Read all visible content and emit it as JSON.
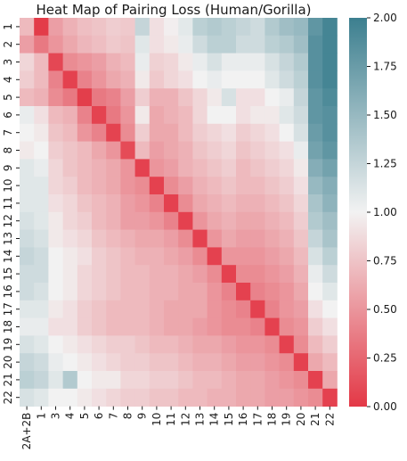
{
  "chart_data": {
    "type": "heatmap",
    "title": "Heat Map of Pairing Loss (Human/Gorilla)",
    "xlabel": "",
    "ylabel": "",
    "row_labels": [
      "1",
      "2",
      "3",
      "4",
      "5",
      "6",
      "7",
      "8",
      "9",
      "10",
      "11",
      "12",
      "13",
      "14",
      "15",
      "16",
      "17",
      "18",
      "19",
      "20",
      "21",
      "22"
    ],
    "col_labels": [
      "2A+2B",
      "1",
      "3",
      "4",
      "5",
      "6",
      "7",
      "8",
      "9",
      "10",
      "11",
      "12",
      "13",
      "14",
      "15",
      "16",
      "17",
      "18",
      "19",
      "20",
      "21",
      "22"
    ],
    "colorbar": {
      "min": 0.0,
      "max": 2.0,
      "ticks": [
        "0.00",
        "0.25",
        "0.50",
        "0.75",
        "1.00",
        "1.25",
        "1.50",
        "1.75",
        "2.00"
      ],
      "colors": {
        "low": "#e33846",
        "mid": "#f2f2f2",
        "high": "#3c7f8f"
      }
    },
    "values": [
      [
        0.7,
        0.02,
        0.55,
        0.65,
        0.72,
        0.75,
        0.8,
        0.78,
        1.25,
        0.9,
        0.98,
        1.08,
        1.3,
        1.35,
        1.3,
        1.25,
        1.2,
        1.35,
        1.45,
        1.5,
        1.8,
        1.95
      ],
      [
        0.55,
        0.35,
        0.5,
        0.6,
        0.68,
        0.72,
        0.78,
        0.75,
        1.1,
        0.9,
        0.95,
        1.05,
        1.2,
        1.3,
        1.3,
        1.2,
        1.2,
        1.3,
        1.35,
        1.45,
        1.85,
        1.95
      ],
      [
        0.85,
        0.7,
        0.08,
        0.45,
        0.5,
        0.55,
        0.65,
        0.7,
        1.05,
        0.82,
        0.85,
        0.95,
        1.05,
        1.15,
        1.05,
        1.05,
        1.05,
        1.15,
        1.25,
        1.35,
        1.85,
        1.95
      ],
      [
        0.8,
        0.7,
        0.4,
        0.05,
        0.4,
        0.5,
        0.6,
        0.65,
        0.95,
        0.78,
        0.85,
        0.9,
        1.0,
        1.05,
        1.0,
        1.0,
        1.0,
        1.1,
        1.2,
        1.3,
        1.85,
        1.95
      ],
      [
        0.7,
        0.65,
        0.45,
        0.35,
        0.03,
        0.35,
        0.4,
        0.55,
        0.8,
        0.65,
        0.65,
        0.75,
        0.85,
        0.95,
        1.15,
        0.9,
        0.9,
        1.0,
        1.05,
        1.25,
        1.8,
        1.9
      ],
      [
        1.05,
        0.9,
        0.7,
        0.65,
        0.4,
        0.06,
        0.35,
        0.5,
        0.95,
        0.6,
        0.65,
        0.7,
        0.85,
        1.0,
        1.0,
        0.9,
        0.95,
        0.95,
        1.1,
        1.2,
        1.8,
        1.85
      ],
      [
        1.0,
        0.95,
        0.75,
        0.7,
        0.5,
        0.4,
        0.06,
        0.45,
        0.8,
        0.6,
        0.6,
        0.7,
        0.8,
        0.85,
        0.9,
        0.8,
        0.85,
        0.9,
        1.0,
        1.15,
        1.75,
        1.85
      ],
      [
        0.95,
        1.0,
        0.8,
        0.75,
        0.7,
        0.6,
        0.5,
        0.1,
        0.7,
        0.55,
        0.6,
        0.65,
        0.75,
        0.8,
        0.85,
        0.75,
        0.8,
        0.85,
        0.9,
        1.05,
        1.7,
        1.8
      ],
      [
        1.1,
        1.05,
        0.85,
        0.75,
        0.7,
        0.65,
        0.6,
        0.5,
        0.05,
        0.5,
        0.55,
        0.65,
        0.7,
        0.75,
        0.8,
        0.7,
        0.75,
        0.8,
        0.85,
        0.95,
        1.6,
        1.7
      ],
      [
        1.1,
        1.1,
        0.85,
        0.8,
        0.7,
        0.65,
        0.6,
        0.5,
        0.45,
        0.05,
        0.45,
        0.55,
        0.65,
        0.7,
        0.75,
        0.7,
        0.7,
        0.75,
        0.8,
        0.9,
        1.5,
        1.6
      ],
      [
        1.1,
        1.1,
        0.9,
        0.85,
        0.75,
        0.7,
        0.65,
        0.55,
        0.5,
        0.4,
        0.05,
        0.45,
        0.6,
        0.65,
        0.7,
        0.65,
        0.65,
        0.7,
        0.75,
        0.85,
        1.4,
        1.55
      ],
      [
        1.15,
        1.1,
        0.95,
        0.85,
        0.8,
        0.7,
        0.65,
        0.55,
        0.55,
        0.5,
        0.4,
        0.05,
        0.5,
        0.6,
        0.65,
        0.6,
        0.6,
        0.65,
        0.7,
        0.8,
        1.35,
        1.45
      ],
      [
        1.2,
        1.15,
        0.95,
        0.9,
        0.85,
        0.75,
        0.7,
        0.65,
        0.6,
        0.6,
        0.55,
        0.45,
        0.05,
        0.5,
        0.6,
        0.55,
        0.55,
        0.6,
        0.65,
        0.75,
        1.25,
        1.4
      ],
      [
        1.25,
        1.2,
        1.0,
        0.95,
        0.9,
        0.8,
        0.75,
        0.7,
        0.65,
        0.65,
        0.6,
        0.55,
        0.45,
        0.05,
        0.5,
        0.5,
        0.5,
        0.55,
        0.6,
        0.7,
        1.15,
        1.3
      ],
      [
        1.2,
        1.2,
        1.0,
        0.95,
        0.85,
        0.8,
        0.75,
        0.7,
        0.7,
        0.65,
        0.65,
        0.6,
        0.55,
        0.45,
        0.05,
        0.45,
        0.45,
        0.5,
        0.55,
        0.65,
        1.05,
        1.2
      ],
      [
        1.2,
        1.15,
        1.0,
        0.95,
        0.85,
        0.8,
        0.75,
        0.7,
        0.7,
        0.65,
        0.65,
        0.6,
        0.6,
        0.5,
        0.4,
        0.05,
        0.4,
        0.45,
        0.5,
        0.6,
        1.0,
        1.1
      ],
      [
        1.1,
        1.1,
        0.95,
        0.9,
        0.8,
        0.75,
        0.7,
        0.7,
        0.7,
        0.65,
        0.6,
        0.6,
        0.6,
        0.5,
        0.45,
        0.4,
        0.05,
        0.4,
        0.5,
        0.55,
        0.9,
        1.0
      ],
      [
        1.05,
        1.05,
        0.9,
        0.9,
        0.8,
        0.75,
        0.7,
        0.7,
        0.7,
        0.65,
        0.6,
        0.6,
        0.55,
        0.5,
        0.45,
        0.45,
        0.4,
        0.05,
        0.45,
        0.5,
        0.8,
        0.9
      ],
      [
        1.15,
        1.1,
        1.0,
        0.95,
        0.9,
        0.85,
        0.8,
        0.8,
        0.75,
        0.7,
        0.7,
        0.65,
        0.6,
        0.6,
        0.55,
        0.5,
        0.5,
        0.45,
        0.05,
        0.45,
        0.7,
        0.8
      ],
      [
        1.25,
        1.2,
        1.05,
        1.0,
        0.95,
        0.9,
        0.85,
        0.8,
        0.8,
        0.75,
        0.75,
        0.7,
        0.65,
        0.65,
        0.6,
        0.55,
        0.55,
        0.5,
        0.45,
        0.05,
        0.6,
        0.7
      ],
      [
        1.3,
        1.25,
        1.1,
        1.35,
        1.0,
        0.95,
        0.95,
        0.85,
        0.85,
        0.8,
        0.8,
        0.75,
        0.7,
        0.7,
        0.65,
        0.6,
        0.6,
        0.55,
        0.5,
        0.45,
        0.05,
        0.6
      ],
      [
        1.15,
        1.1,
        1.0,
        1.0,
        0.95,
        0.9,
        0.85,
        0.8,
        0.8,
        0.75,
        0.75,
        0.7,
        0.7,
        0.65,
        0.65,
        0.6,
        0.6,
        0.55,
        0.55,
        0.5,
        0.45,
        0.05
      ]
    ]
  }
}
